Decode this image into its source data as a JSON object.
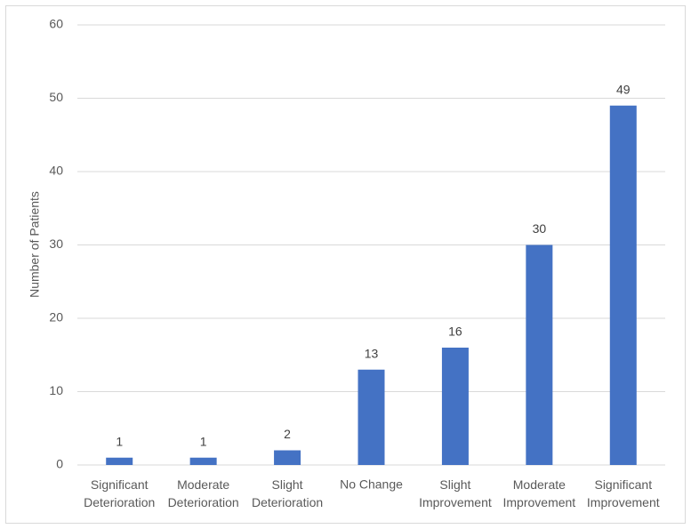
{
  "chart_data": {
    "type": "bar",
    "y_label": "Number of Patients",
    "categories": [
      "Significant Deterioration",
      "Moderate Deterioration",
      "Slight Deterioration",
      "No Change",
      "Slight Improvement",
      "Moderate Improvement",
      "Significant Improvement"
    ],
    "values": [
      1,
      1,
      2,
      13,
      16,
      30,
      49
    ],
    "color": "#4472c4",
    "ylim": [
      0,
      60
    ],
    "yticks": [
      0,
      10,
      20,
      30,
      40,
      50,
      60
    ],
    "grid": true
  }
}
